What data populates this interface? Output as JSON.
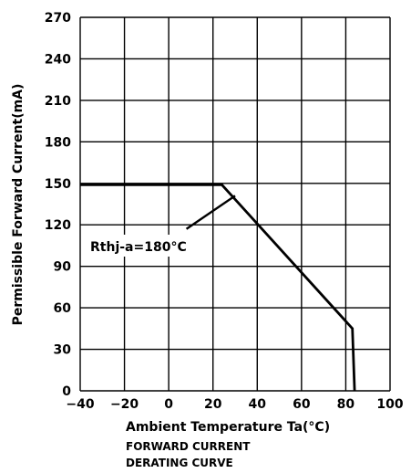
{
  "chart_data": {
    "type": "line",
    "xlabel": "Ambient Temperature Ta(°C)",
    "ylabel": "Permissible Forward Current(mA)",
    "caption_lines": [
      "FORWARD CURRENT",
      "DERATING CURVE"
    ],
    "xlim": [
      -40,
      100
    ],
    "ylim": [
      0,
      270
    ],
    "x_ticks": [
      -40,
      -20,
      0,
      20,
      40,
      60,
      80,
      100
    ],
    "y_ticks": [
      0,
      30,
      60,
      90,
      120,
      150,
      180,
      210,
      240,
      270
    ],
    "grid": true,
    "series": [
      {
        "points": [
          {
            "x": -40,
            "y": 149
          },
          {
            "x": 24,
            "y": 149
          },
          {
            "x": 83,
            "y": 45
          },
          {
            "x": 84,
            "y": 0
          }
        ]
      }
    ],
    "annotations": [
      {
        "text": "Rthj-a=180°C",
        "arrow_from": {
          "x": 8,
          "y": 117
        },
        "arrow_to": {
          "x": 30,
          "y": 141
        }
      }
    ]
  }
}
